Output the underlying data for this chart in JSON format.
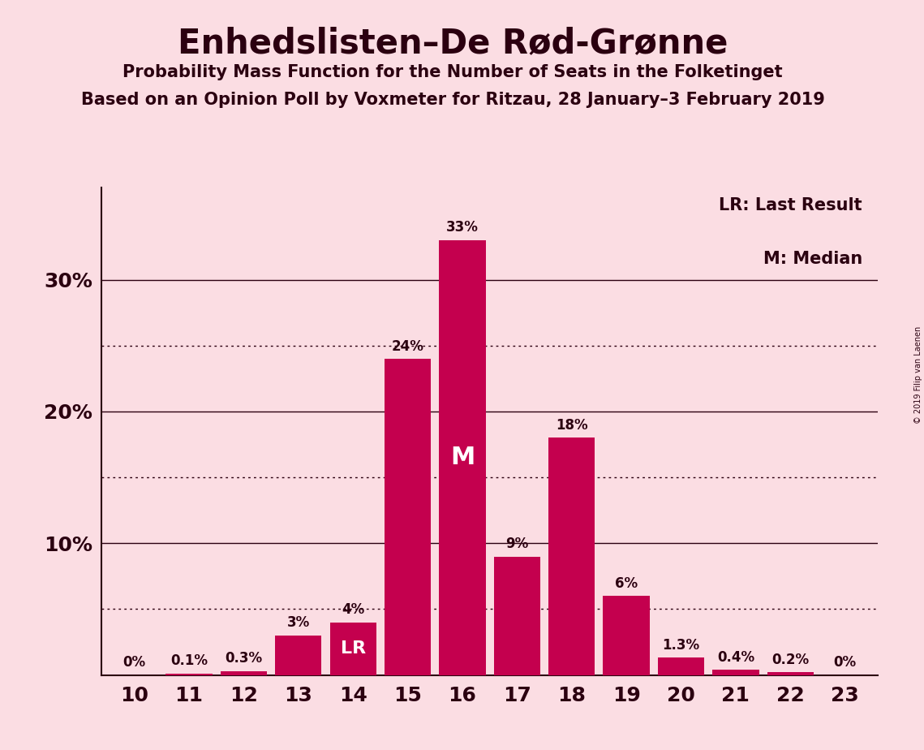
{
  "title": "Enhedslisten–De Rød-Grønne",
  "subtitle1": "Probability Mass Function for the Number of Seats in the Folketinget",
  "subtitle2": "Based on an Opinion Poll by Voxmeter for Ritzau, 28 January–3 February 2019",
  "categories": [
    10,
    11,
    12,
    13,
    14,
    15,
    16,
    17,
    18,
    19,
    20,
    21,
    22,
    23
  ],
  "values": [
    0.0,
    0.1,
    0.3,
    3.0,
    4.0,
    24.0,
    33.0,
    9.0,
    18.0,
    6.0,
    1.3,
    0.4,
    0.2,
    0.0
  ],
  "bar_labels": [
    "0%",
    "0.1%",
    "0.3%",
    "3%",
    "4%",
    "24%",
    "33%",
    "9%",
    "18%",
    "6%",
    "1.3%",
    "0.4%",
    "0.2%",
    "0%"
  ],
  "bar_color": "#C4004E",
  "background_color": "#FBDDE3",
  "text_color": "#2B0010",
  "lr_bar": 14,
  "median_bar": 16,
  "lr_label": "LR",
  "median_label": "M",
  "legend_lr": "LR: Last Result",
  "legend_m": "M: Median",
  "ylabel_ticks": [
    10,
    20,
    30
  ],
  "dotted_lines": [
    5,
    15,
    25
  ],
  "solid_lines": [
    10,
    20,
    30
  ],
  "ylim": [
    0,
    37
  ],
  "copyright": "© 2019 Filip van Laenen"
}
